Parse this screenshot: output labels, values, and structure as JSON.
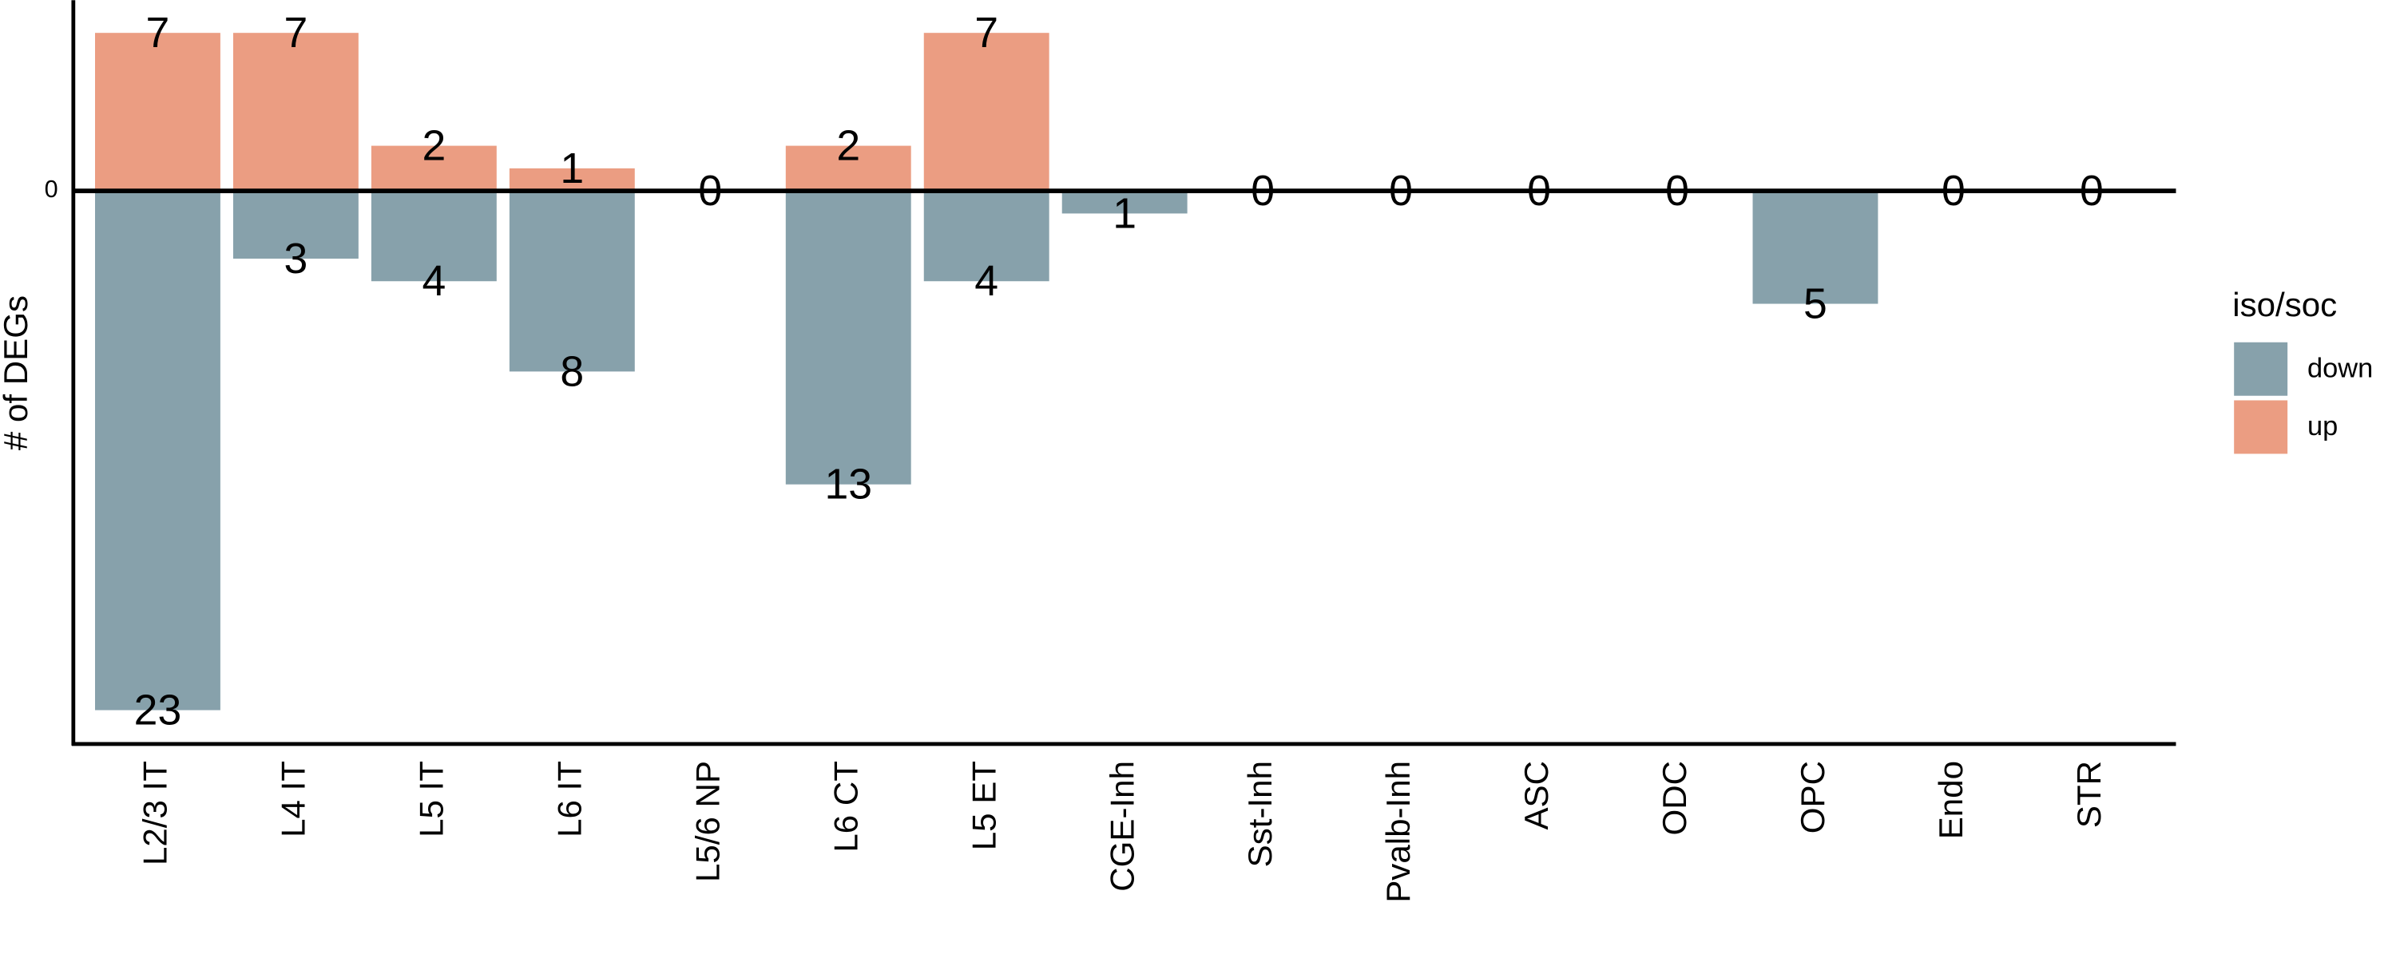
{
  "chart_data": {
    "type": "bar",
    "y_label": "# of DEGs",
    "legend_title": "iso/soc",
    "categories": [
      "L2/3 IT",
      "L4 IT",
      "L5 IT",
      "L6 IT",
      "L5/6 NP",
      "L6 CT",
      "L5 ET",
      "CGE-Inh",
      "Sst-Inh",
      "Pvalb-Inh",
      "ASC",
      "ODC",
      "OPC",
      "Endo",
      "STR"
    ],
    "series": [
      {
        "name": "down",
        "color": "#87a1ab",
        "values": [
          -23,
          -3,
          -4,
          -8,
          null,
          -13,
          -4,
          -1,
          null,
          null,
          null,
          null,
          -5,
          null,
          null
        ],
        "value_labels": [
          "23",
          "3",
          "4",
          "8",
          null,
          "13",
          "4",
          "1",
          null,
          null,
          null,
          null,
          "5",
          null,
          null
        ]
      },
      {
        "name": "up",
        "color": "#eb9d82",
        "values": [
          7,
          7,
          2,
          1,
          0,
          2,
          7,
          null,
          0,
          0,
          0,
          0,
          null,
          0,
          0
        ]
      }
    ],
    "ylim": [
      -24.5,
      8.45
    ],
    "yticks": [
      0
    ],
    "grid": false,
    "legend": "right"
  }
}
